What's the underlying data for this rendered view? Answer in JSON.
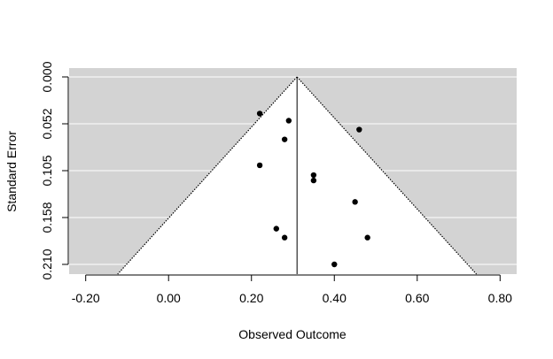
{
  "chart_data": {
    "type": "scatter",
    "title": "",
    "xlabel": "Observed Outcome",
    "ylabel": "Standard Error",
    "xlim": [
      -0.24,
      0.84
    ],
    "ylim_inverted": [
      0.0,
      0.21
    ],
    "x_ticks": [
      -0.2,
      0.0,
      0.2,
      0.4,
      0.6,
      0.8
    ],
    "x_tick_labels": [
      "-0.20",
      "0.00",
      "0.20",
      "0.40",
      "0.60",
      "0.80"
    ],
    "y_ticks": [
      0.0,
      0.0525,
      0.105,
      0.1575,
      0.21
    ],
    "y_tick_labels": [
      "0.000",
      "0.052",
      "0.105",
      "0.158",
      "0.210"
    ],
    "grid": true,
    "pooled_estimate": 0.31,
    "funnel_z": 1.96,
    "colors": {
      "panel": "#d3d3d3",
      "funnel": "#ffffff",
      "points": "#000000"
    },
    "points": [
      {
        "x": 0.22,
        "y": 0.041
      },
      {
        "x": 0.29,
        "y": 0.049
      },
      {
        "x": 0.46,
        "y": 0.059
      },
      {
        "x": 0.28,
        "y": 0.07
      },
      {
        "x": 0.22,
        "y": 0.099
      },
      {
        "x": 0.35,
        "y": 0.11
      },
      {
        "x": 0.35,
        "y": 0.116
      },
      {
        "x": 0.45,
        "y": 0.14
      },
      {
        "x": 0.26,
        "y": 0.17
      },
      {
        "x": 0.48,
        "y": 0.18
      },
      {
        "x": 0.28,
        "y": 0.18
      },
      {
        "x": 0.4,
        "y": 0.21
      }
    ]
  }
}
